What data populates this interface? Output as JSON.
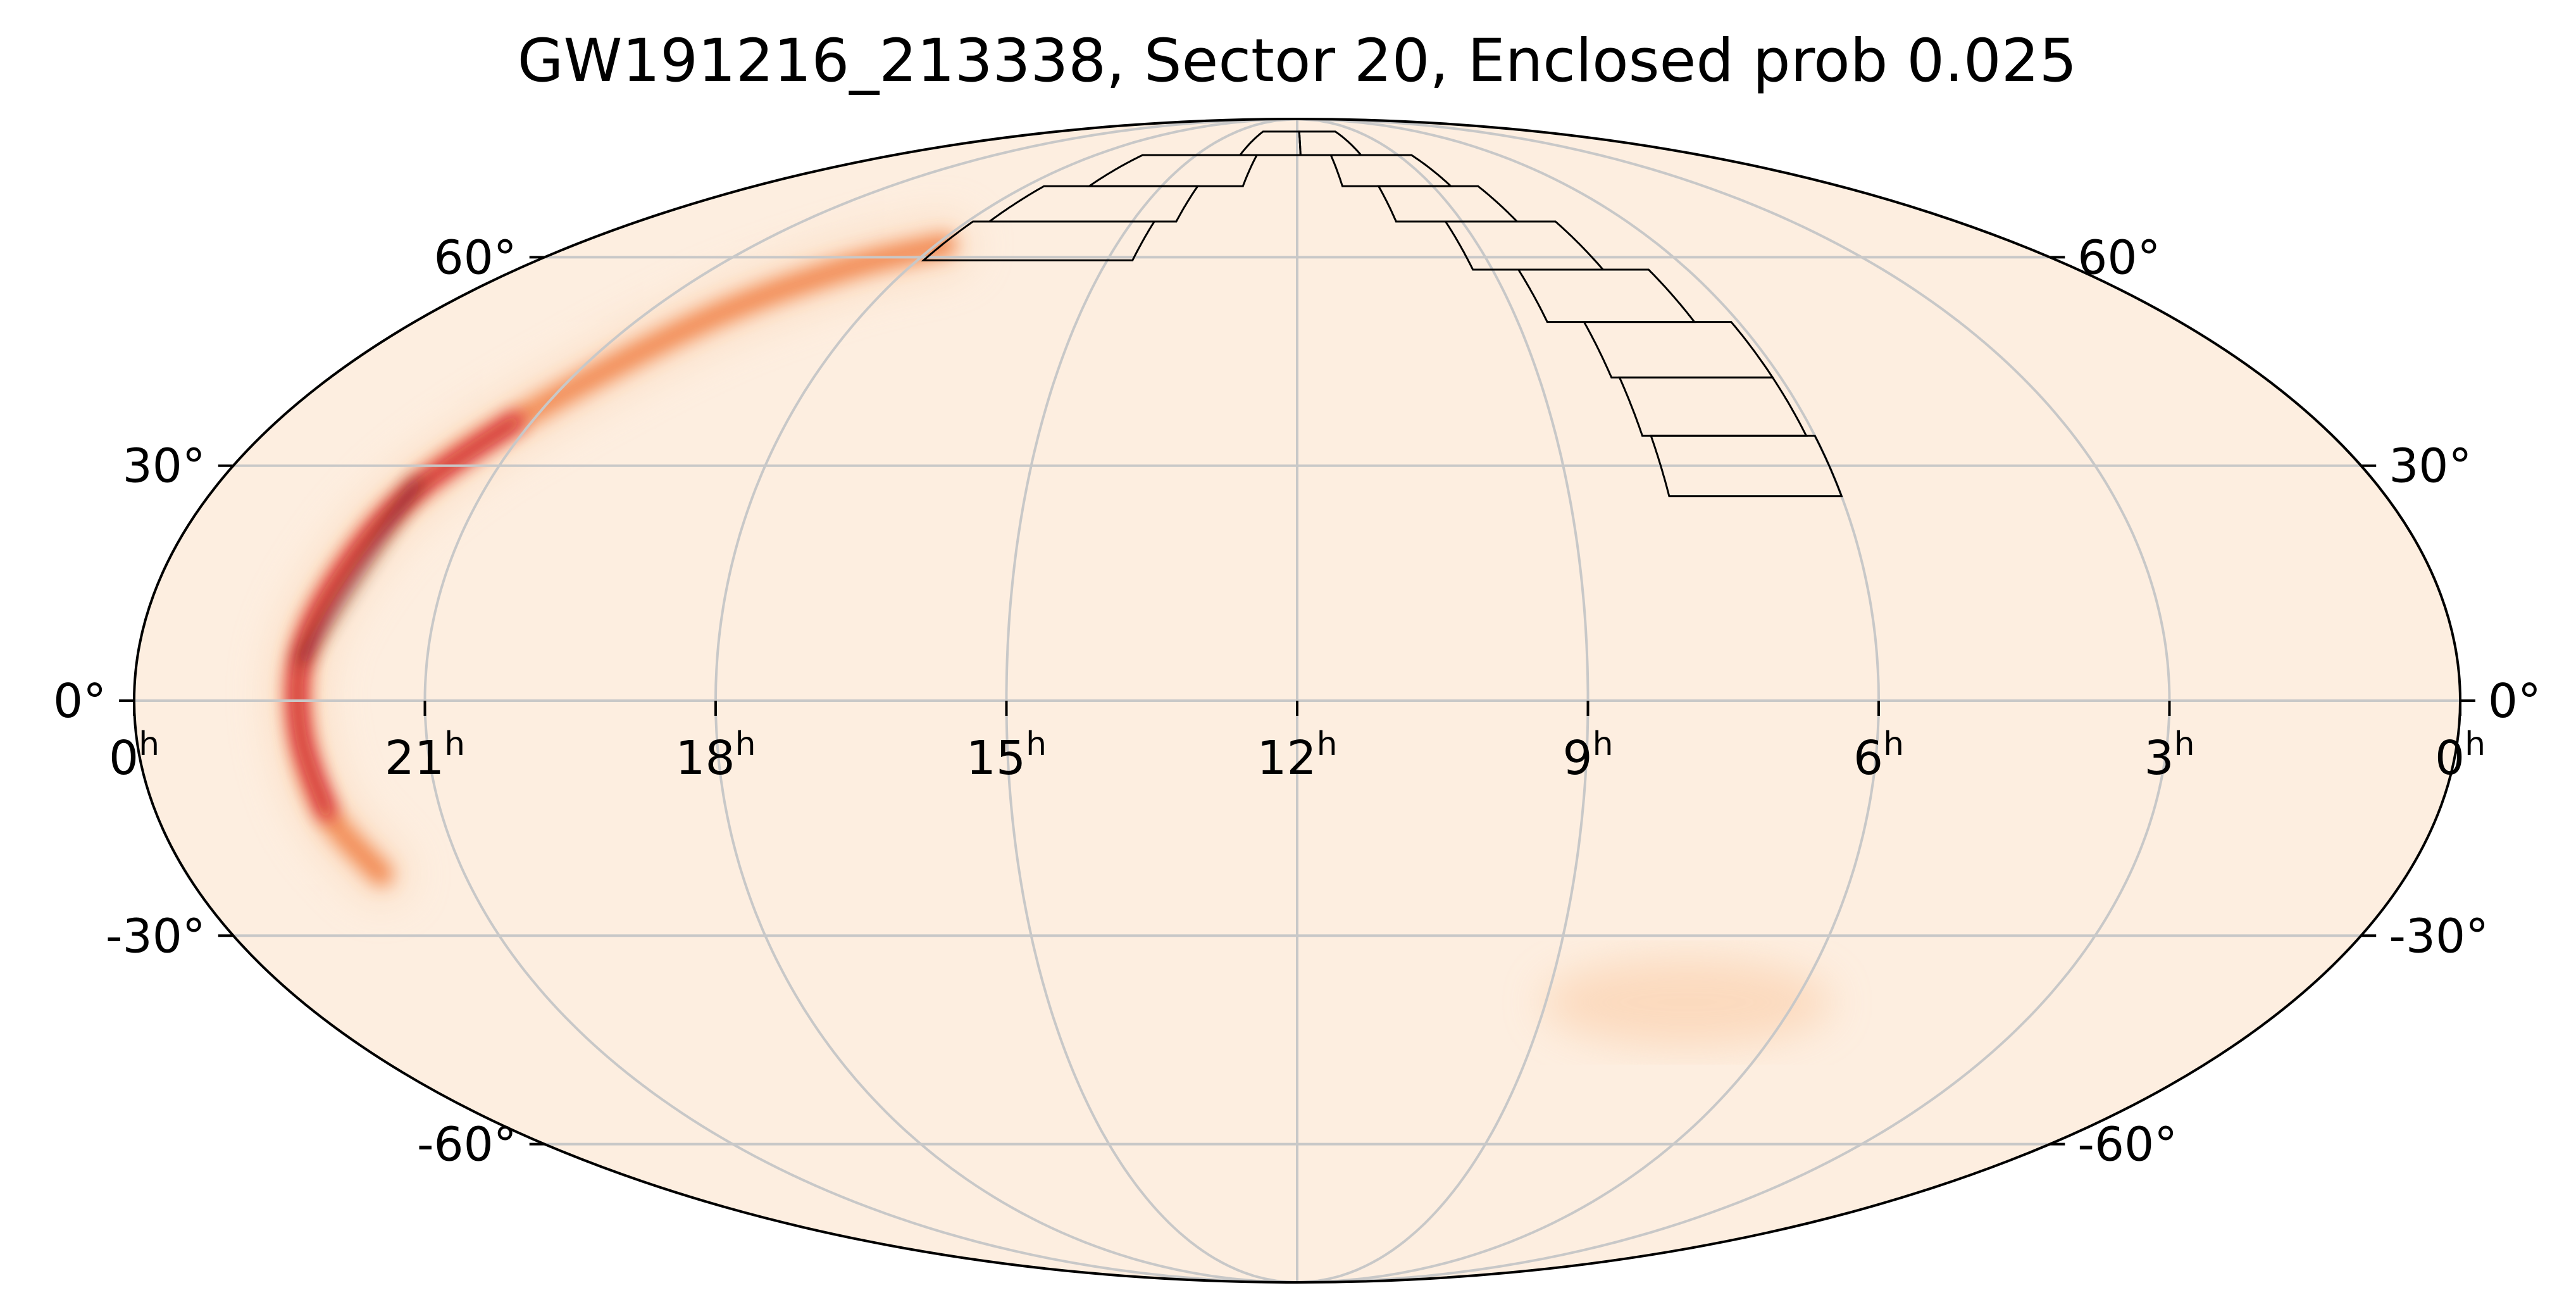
{
  "chart_data": {
    "type": "heatmap",
    "projection": "mollweide",
    "title": "GW191216_213338, Sector 20, Enclosed prob 0.025",
    "x_axis": {
      "quantity": "right ascension",
      "direction": "increasing to the left",
      "tick_labels": [
        {
          "value_hours": 24,
          "text": "0",
          "sup": "h"
        },
        {
          "value_hours": 21,
          "text": "21",
          "sup": "h"
        },
        {
          "value_hours": 18,
          "text": "18",
          "sup": "h"
        },
        {
          "value_hours": 15,
          "text": "15",
          "sup": "h"
        },
        {
          "value_hours": 12,
          "text": "12",
          "sup": "h"
        },
        {
          "value_hours": 9,
          "text": "9",
          "sup": "h"
        },
        {
          "value_hours": 6,
          "text": "6",
          "sup": "h"
        },
        {
          "value_hours": 3,
          "text": "3",
          "sup": "h"
        },
        {
          "value_hours": 0,
          "text": "0",
          "sup": "h"
        }
      ]
    },
    "y_axis": {
      "quantity": "declination",
      "tick_labels": [
        {
          "value_deg": 60,
          "text": "60°"
        },
        {
          "value_deg": 30,
          "text": "30°"
        },
        {
          "value_deg": 0,
          "text": "0°"
        },
        {
          "value_deg": -30,
          "text": "-30°"
        },
        {
          "value_deg": -60,
          "text": "-60°"
        }
      ]
    },
    "grid": true,
    "colors": {
      "background": "#fdeee0",
      "low": "#fbd2b0",
      "mid": "#f07a3c",
      "high": "#c8102e",
      "peak": "#3a0a18",
      "grid": "#c8c8c8",
      "tiles": "#000000"
    },
    "probability_arc": {
      "description_points_ra_dec": [
        [
          17.85,
          62
        ],
        [
          19.0,
          58
        ],
        [
          20.1,
          50
        ],
        [
          21.2,
          36
        ],
        [
          21.8,
          26
        ],
        [
          22.1,
          16
        ],
        [
          22.3,
          6
        ],
        [
          22.3,
          -4
        ],
        [
          22.2,
          -14
        ],
        [
          21.9,
          -22
        ]
      ],
      "peak_region_ra_dec": [
        [
          21.8,
          28
        ],
        [
          22.3,
          5
        ]
      ]
    },
    "secondary_blob_ra_dec": [
      [
        8.2,
        -40
      ],
      [
        6.2,
        -38
      ],
      [
        7.5,
        -39
      ]
    ],
    "sector_tiles": [
      {
        "ra_min": 14.6,
        "ra_max": 17.9,
        "dec_min": 59.5,
        "dec_max": 66
      },
      {
        "ra_min": 14.2,
        "ra_max": 17.6,
        "dec_min": 66,
        "dec_max": 72.5
      },
      {
        "ra_min": 13.2,
        "ra_max": 16.6,
        "dec_min": 72.5,
        "dec_max": 79
      },
      {
        "ra_min": 11.9,
        "ra_max": 13.7,
        "dec_min": 79,
        "dec_max": 85
      },
      {
        "ra_min": 10.1,
        "ra_max": 11.9,
        "dec_min": 79,
        "dec_max": 85
      },
      {
        "ra_min": 8.6,
        "ra_max": 11.0,
        "dec_min": 72.5,
        "dec_max": 79
      },
      {
        "ra_min": 8.0,
        "ra_max": 10.2,
        "dec_min": 66,
        "dec_max": 72.5
      },
      {
        "ra_min": 7.3,
        "ra_max": 9.3,
        "dec_min": 58,
        "dec_max": 66
      },
      {
        "ra_min": 6.6,
        "ra_max": 8.6,
        "dec_min": 50,
        "dec_max": 58
      },
      {
        "ra_min": 6.1,
        "ra_max": 8.1,
        "dec_min": 42,
        "dec_max": 50
      },
      {
        "ra_min": 6.1,
        "ra_max": 8.0,
        "dec_min": 34,
        "dec_max": 42
      },
      {
        "ra_min": 6.0,
        "ra_max": 7.9,
        "dec_min": 26,
        "dec_max": 34
      }
    ]
  }
}
